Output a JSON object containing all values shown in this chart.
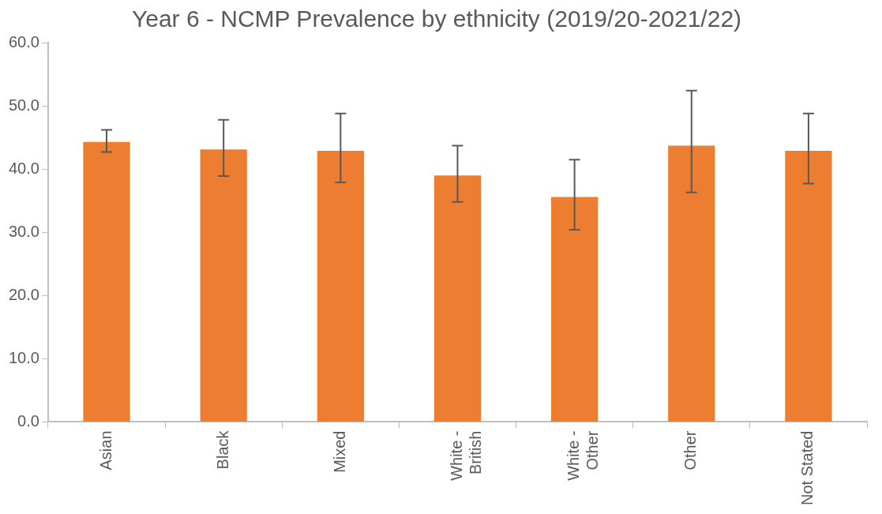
{
  "chart_data": {
    "type": "bar",
    "title": "Year 6 - NCMP Prevalence by ethnicity (2019/20-2021/22)",
    "categories": [
      "Asian",
      "Black",
      "Mixed",
      "White - British",
      "White - Other",
      "Other",
      "Not Stated"
    ],
    "values": [
      44.3,
      43.1,
      42.9,
      39.0,
      35.6,
      43.7,
      42.9
    ],
    "errors": [
      [
        42.7,
        46.2
      ],
      [
        38.9,
        47.8
      ],
      [
        37.9,
        48.8
      ],
      [
        34.8,
        43.7
      ],
      [
        30.4,
        41.5
      ],
      [
        36.3,
        52.4
      ],
      [
        37.7,
        48.8
      ]
    ],
    "color": "#ed7d31",
    "ylim": [
      0,
      60
    ],
    "yticks": [
      {
        "value": 0,
        "label": "0.0"
      },
      {
        "value": 10,
        "label": "10.0"
      },
      {
        "value": 20,
        "label": "20.0"
      },
      {
        "value": 30,
        "label": "30.0"
      },
      {
        "value": 40,
        "label": "40.0"
      },
      {
        "value": 50,
        "label": "50.0"
      },
      {
        "value": 60,
        "label": "60.0"
      }
    ],
    "grid": false,
    "legend": false
  }
}
